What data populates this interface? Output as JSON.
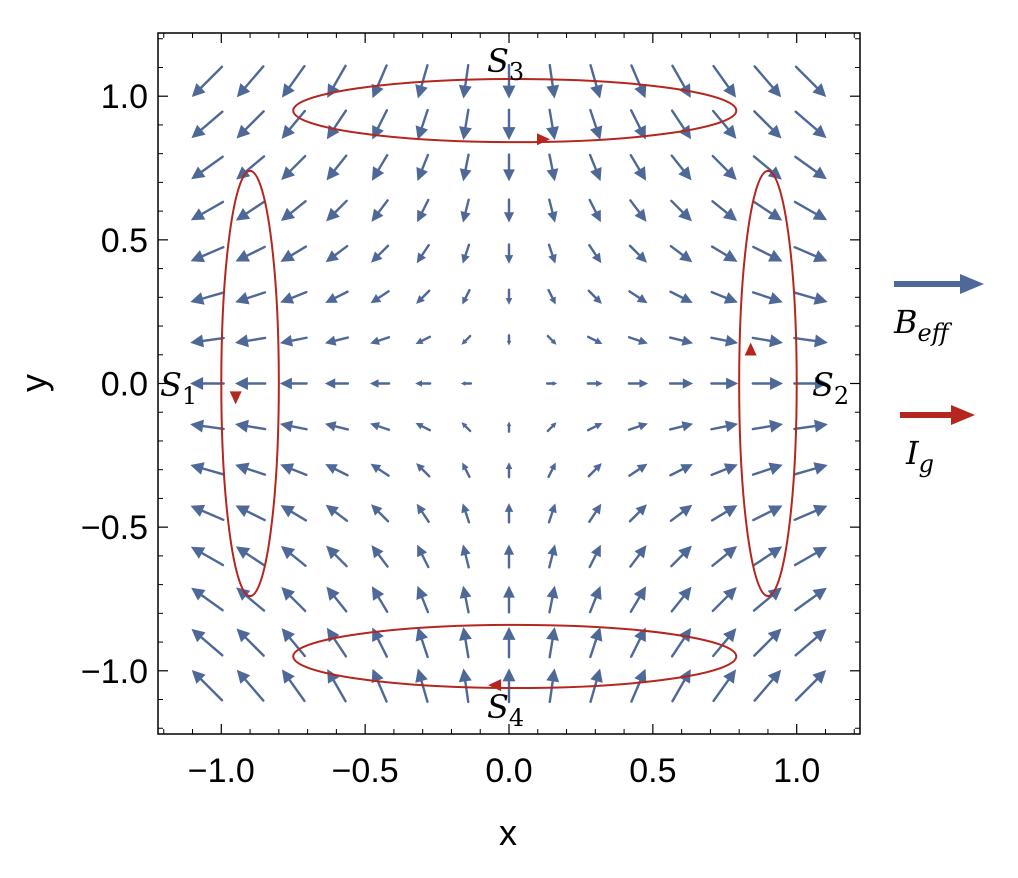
{
  "chart_data": {
    "type": "vector_field",
    "xlabel": "x",
    "ylabel": "y",
    "xlim": [
      -1.22,
      1.22
    ],
    "ylim": [
      -1.22,
      1.22
    ],
    "x_ticks": [
      -1.0,
      -0.5,
      0.0,
      0.5,
      1.0
    ],
    "y_ticks": [
      -1.0,
      -0.5,
      0.0,
      0.5,
      1.0
    ],
    "x_tick_labels": [
      "−1.0",
      "−0.5",
      "0.0",
      "0.5",
      "1.0"
    ],
    "y_tick_labels": [
      "−1.0",
      "−0.5",
      "0.0",
      "0.5",
      "1.0"
    ],
    "field": {
      "name": "B_eff",
      "grid": [
        -1.05,
        1.05,
        15
      ],
      "vector_formula": "(x, -y)",
      "color": "#4e6898"
    },
    "loops": [
      {
        "label_base": "S",
        "label_sub": "1",
        "cx": -0.9,
        "cy": 0.0,
        "rx": 0.1,
        "ry": 0.74,
        "direction_arrow": [
          -0.95,
          -0.05
        ],
        "arrow_dir": "down"
      },
      {
        "label_base": "S",
        "label_sub": "2",
        "cx": 0.9,
        "cy": 0.0,
        "rx": 0.1,
        "ry": 0.74,
        "direction_arrow": [
          0.84,
          0.12
        ],
        "arrow_dir": "up"
      },
      {
        "label_base": "S",
        "label_sub": "3",
        "cx": 0.02,
        "cy": 0.95,
        "rx": 0.77,
        "ry": 0.11,
        "direction_arrow": [
          0.12,
          0.85
        ],
        "arrow_dir": "right"
      },
      {
        "label_base": "S",
        "label_sub": "4",
        "cx": 0.02,
        "cy": -0.95,
        "rx": 0.77,
        "ry": 0.11,
        "direction_arrow": [
          -0.05,
          -1.05
        ],
        "arrow_dir": "left"
      }
    ],
    "loop_color": "#b5261e",
    "legend": [
      {
        "base": "B",
        "sub": "eff",
        "color": "#4e6898"
      },
      {
        "base": "I",
        "sub": "g",
        "color": "#b5261e"
      }
    ],
    "legend_position": "right"
  }
}
